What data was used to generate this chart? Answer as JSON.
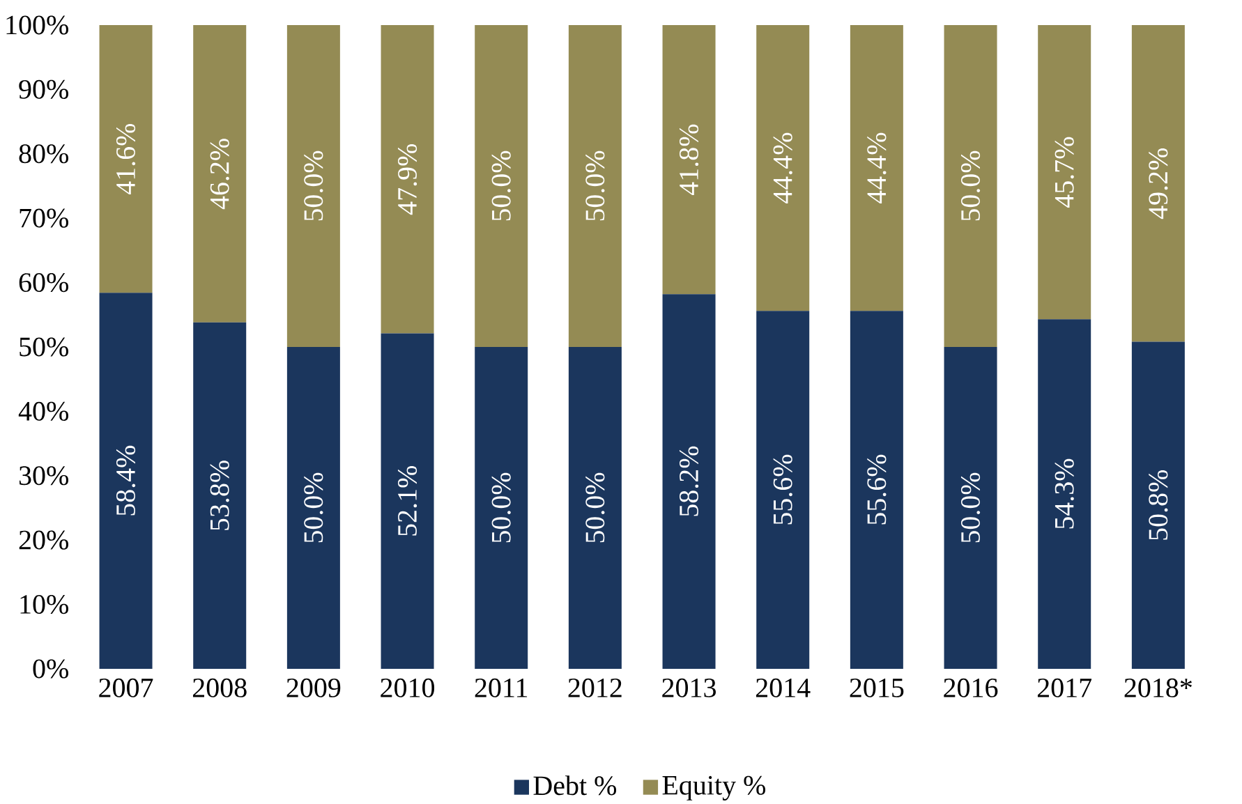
{
  "chart_data": {
    "type": "bar",
    "stacked": true,
    "categories": [
      "2007",
      "2008",
      "2009",
      "2010",
      "2011",
      "2012",
      "2013",
      "2014",
      "2015",
      "2016",
      "2017",
      "2018*"
    ],
    "series": [
      {
        "name": "Debt %",
        "color": "#1b365d",
        "values": [
          58.4,
          53.8,
          50.0,
          52.1,
          50.0,
          50.0,
          58.2,
          55.6,
          55.6,
          50.0,
          54.3,
          50.8
        ],
        "value_labels": [
          "58.4%",
          "53.8%",
          "50.0%",
          "52.1%",
          "50.0%",
          "50.0%",
          "58.2%",
          "55.6%",
          "55.6%",
          "50.0%",
          "54.3%",
          "50.8%"
        ]
      },
      {
        "name": "Equity %",
        "color": "#948b54",
        "values": [
          41.6,
          46.2,
          50.0,
          47.9,
          50.0,
          50.0,
          41.8,
          44.4,
          44.4,
          50.0,
          45.7,
          49.2
        ],
        "value_labels": [
          "41.6%",
          "46.2%",
          "50.0%",
          "47.9%",
          "50.0%",
          "50.0%",
          "41.8%",
          "44.4%",
          "44.4%",
          "50.0%",
          "45.7%",
          "49.2%"
        ]
      }
    ],
    "ylim": [
      0,
      100
    ],
    "yticks": [
      {
        "value": 0,
        "label": "0%"
      },
      {
        "value": 10,
        "label": "10%"
      },
      {
        "value": 20,
        "label": "20%"
      },
      {
        "value": 30,
        "label": "30%"
      },
      {
        "value": 40,
        "label": "40%"
      },
      {
        "value": 50,
        "label": "50%"
      },
      {
        "value": 60,
        "label": "60%"
      },
      {
        "value": 70,
        "label": "70%"
      },
      {
        "value": 80,
        "label": "80%"
      },
      {
        "value": 90,
        "label": "90%"
      },
      {
        "value": 100,
        "label": "100%"
      }
    ],
    "grid": false,
    "legend": "bottom"
  }
}
